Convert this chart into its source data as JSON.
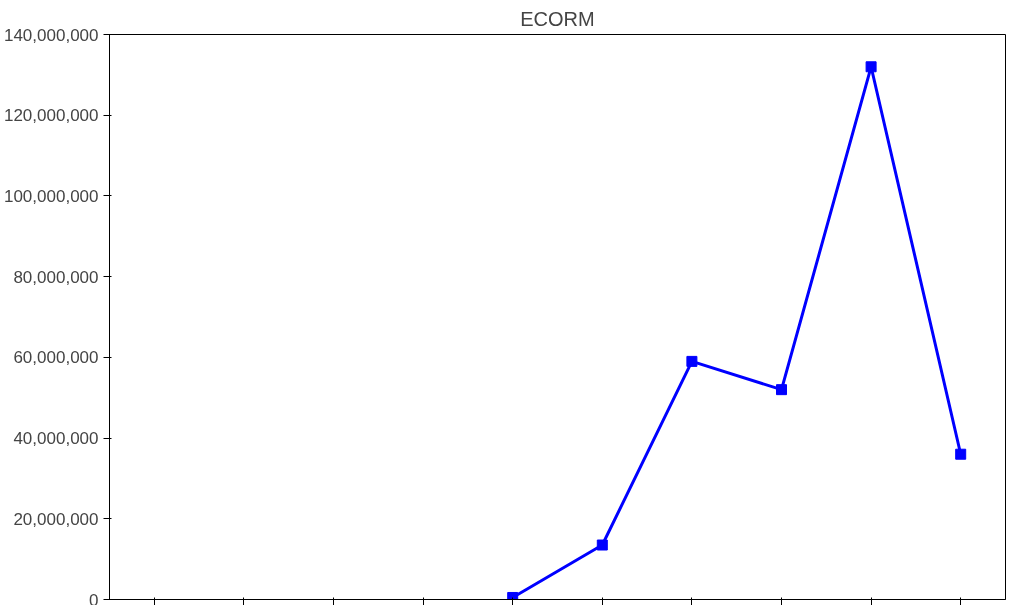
{
  "chart_data": {
    "type": "line",
    "title": "ECORM",
    "categories": [
      null,
      null,
      null,
      null,
      null,
      null,
      null,
      null,
      null,
      null
    ],
    "series": [
      {
        "color": "#0000ff",
        "values": [
          null,
          null,
          null,
          null,
          500000,
          13500000,
          59000000,
          52000000,
          132000000,
          36000000
        ]
      }
    ],
    "ylim": [
      0,
      140000000
    ],
    "yticks": [
      {
        "value": 0,
        "label": "0"
      },
      {
        "value": 20000000,
        "label": "20,000,000"
      },
      {
        "value": 40000000,
        "label": "40,000,000"
      },
      {
        "value": 60000000,
        "label": "60,000,000"
      },
      {
        "value": 80000000,
        "label": "80,000,000"
      },
      {
        "value": 100000000,
        "label": "100,000,000"
      },
      {
        "value": 120000000,
        "label": "120,000,000"
      },
      {
        "value": 140000000,
        "label": "140,000,000"
      }
    ],
    "grid": false,
    "marker": "square",
    "line_style": "solid",
    "tick_labels": "y"
  }
}
